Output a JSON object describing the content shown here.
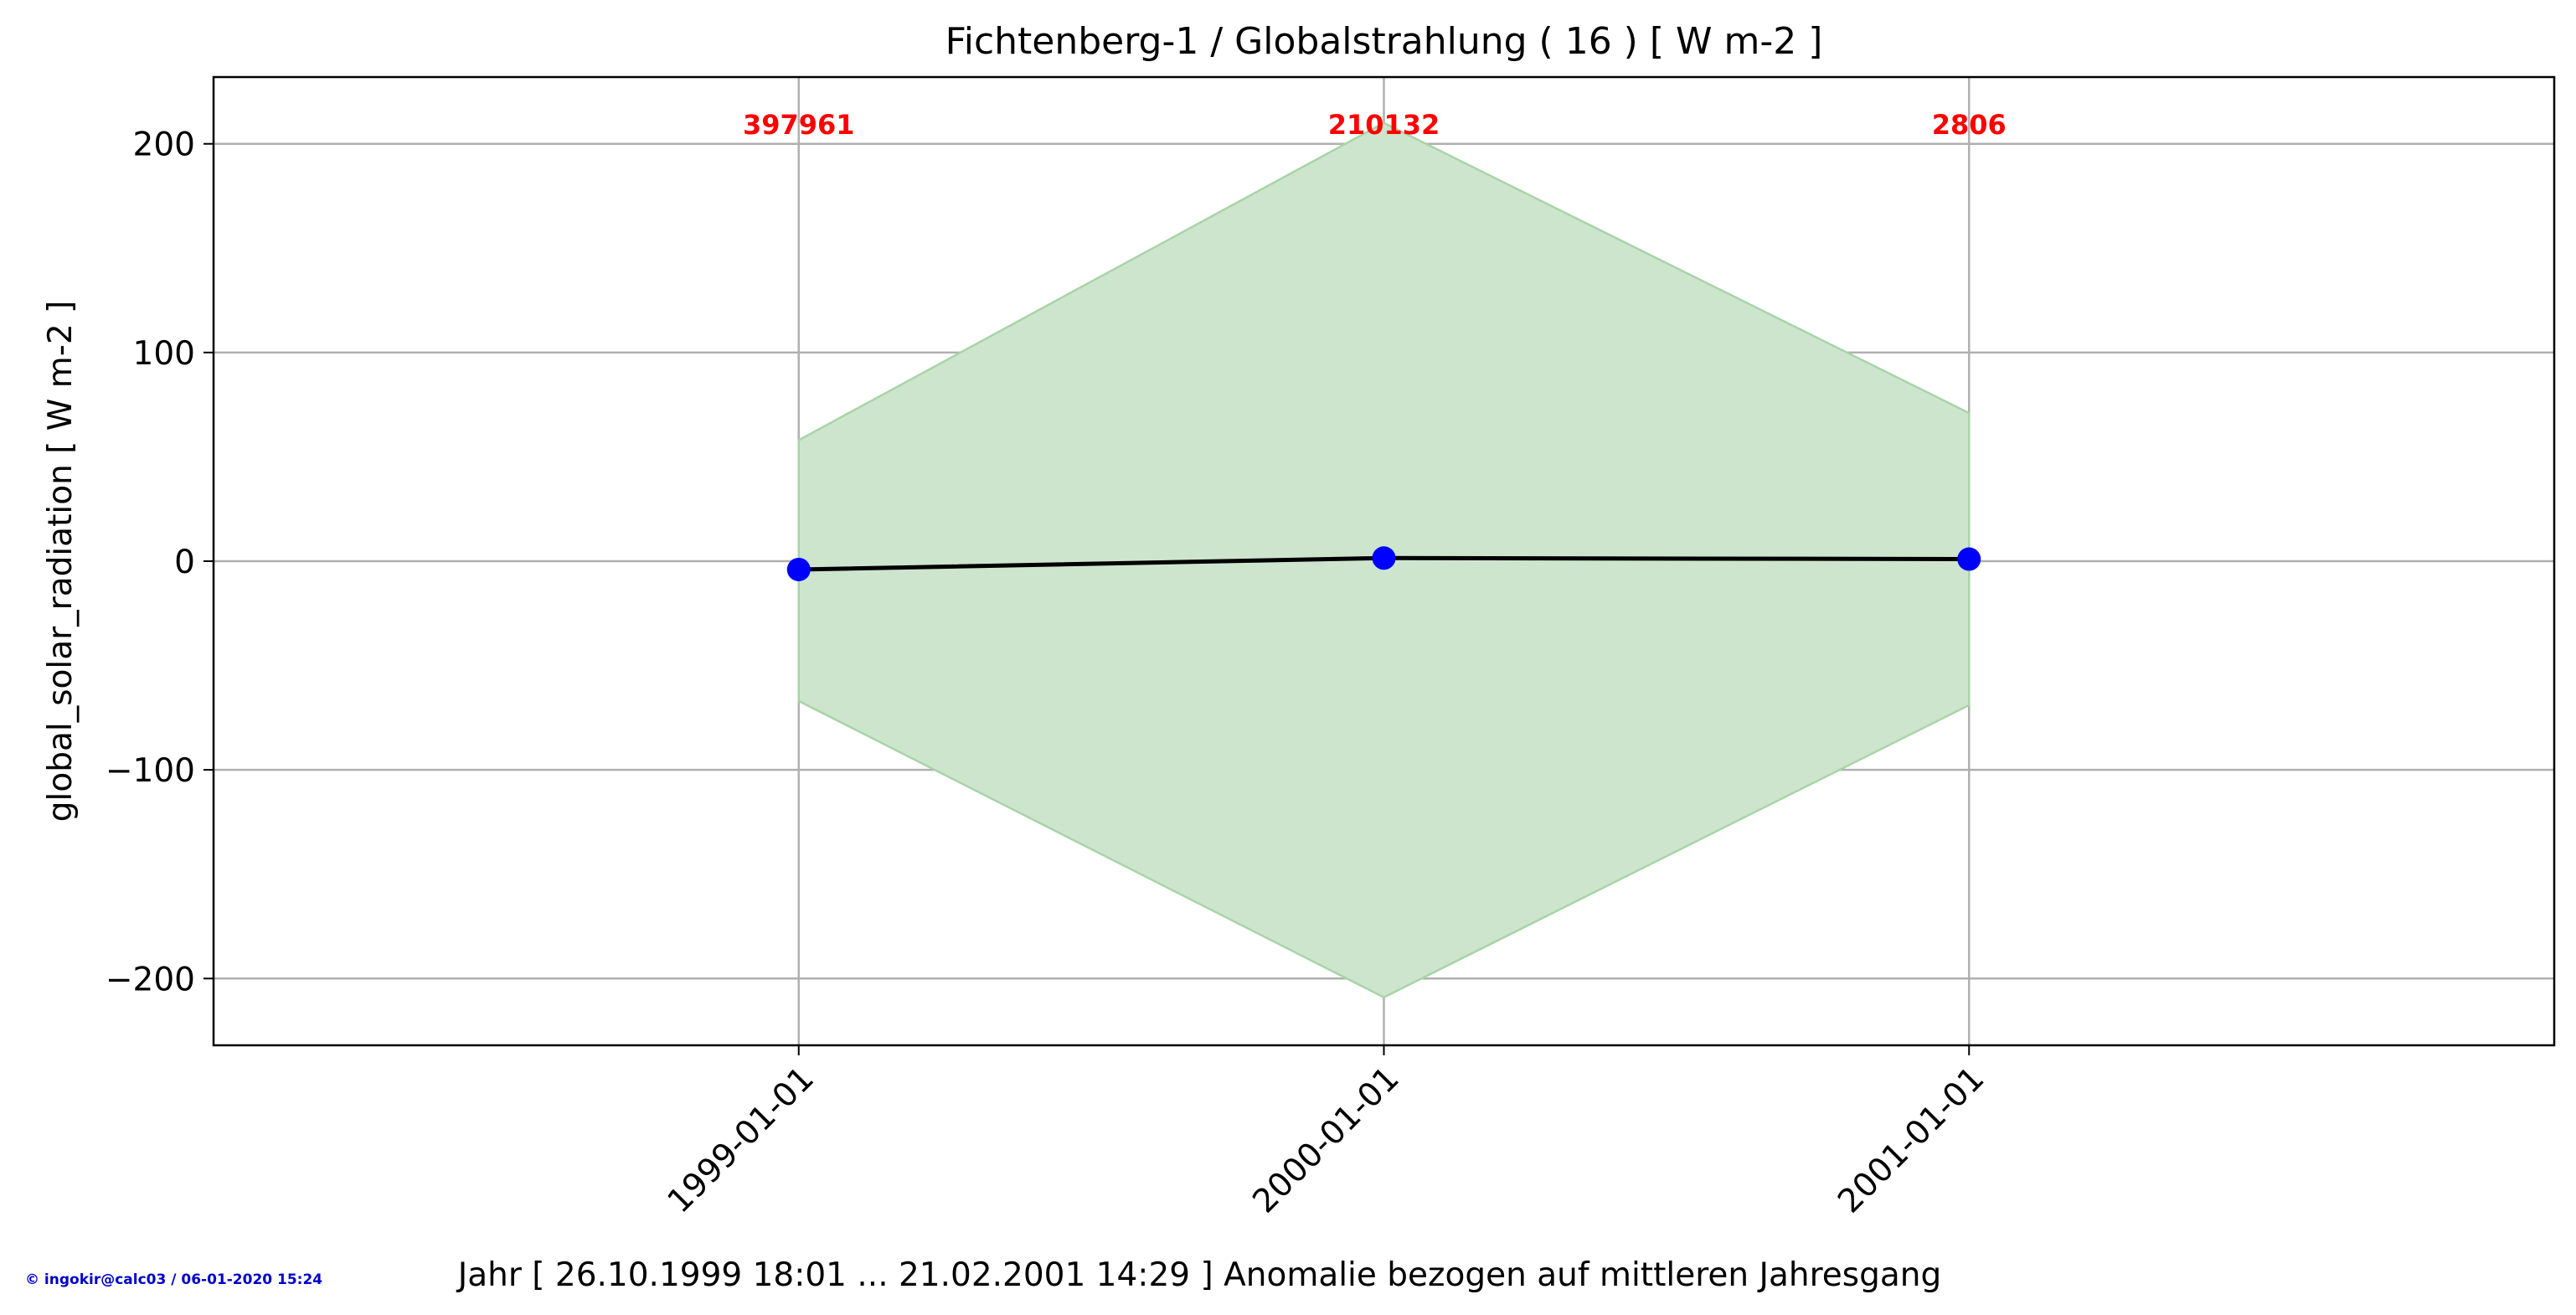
{
  "chart_data": {
    "type": "line",
    "title": "Fichtenberg-1 / Globalstrahlung ( 16 ) [ W m-2 ]",
    "xlabel": "Jahr [ 26.10.1999 18:01 ... 21.02.2001 14:29 ] Anomalie bezogen auf mittleren Jahresgang",
    "ylabel": "global_solar_radiation [ W m-2 ]",
    "x": [
      "1999-01-01",
      "2000-01-01",
      "2001-01-01"
    ],
    "x_numeric": [
      1999,
      2000,
      2001
    ],
    "xlim": [
      1998,
      2002
    ],
    "ylim": [
      -232,
      232
    ],
    "yticks": [
      -200,
      -100,
      0,
      100,
      200
    ],
    "ytick_labels": [
      "−200",
      "−100",
      "0",
      "100",
      "200"
    ],
    "grid": true,
    "series": [
      {
        "values": [
          -4,
          1.5,
          1
        ],
        "color": "#000000",
        "marker_color": "#0000ff"
      }
    ],
    "band": {
      "upper": [
        58,
        210,
        71
      ],
      "lower": [
        -67,
        -209,
        -69
      ],
      "color": "#cde5cd",
      "edge_color": "#a8d4a8"
    },
    "annotations": [
      {
        "x": 1999,
        "text": "397961"
      },
      {
        "x": 2000,
        "text": "210132"
      },
      {
        "x": 2001,
        "text": "2806"
      }
    ],
    "annotation_color": "#ff0000"
  },
  "footer": {
    "copyright": "© ingokir@calc03 / 06-01-2020 15:24"
  }
}
